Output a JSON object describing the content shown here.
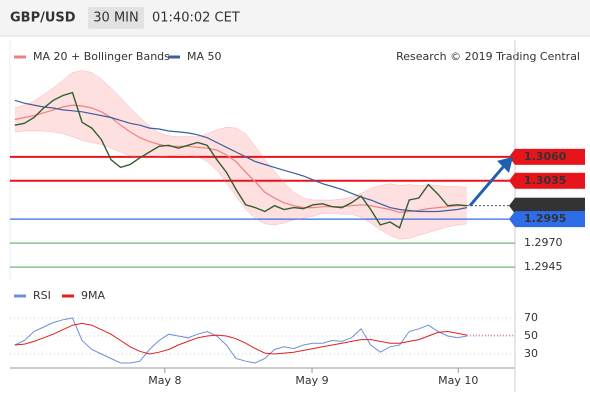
{
  "chart_data": {
    "type": "line",
    "title": "GBP/USD",
    "timeframe": "30 MIN",
    "time": "01:40:02 CET",
    "source": "Research © 2019 Trading Central",
    "price_color": "#2f5f2f",
    "price": [
      1.3093,
      1.3095,
      1.3101,
      1.3111,
      1.3119,
      1.3124,
      1.3127,
      1.3096,
      1.309,
      1.3078,
      1.3057,
      1.3049,
      1.3052,
      1.3059,
      1.3065,
      1.3071,
      1.3072,
      1.3069,
      1.3072,
      1.3075,
      1.3072,
      1.3057,
      1.3044,
      1.3026,
      1.301,
      1.3007,
      1.3003,
      1.3009,
      1.3005,
      1.3007,
      1.3006,
      1.301,
      1.3011,
      1.3008,
      1.3007,
      1.3012,
      1.3019,
      1.3005,
      1.2989,
      1.2992,
      1.2986,
      1.3015,
      1.3017,
      1.3031,
      1.3021,
      1.3009,
      1.301,
      1.3009
    ],
    "series": [
      {
        "name": "MA 20 + Bollinger Bands",
        "color": "#f08080",
        "band_color": "#ffd6d6",
        "values": [
          1.3099,
          1.3101,
          1.3103,
          1.3106,
          1.3109,
          1.3112,
          1.3114,
          1.3113,
          1.3111,
          1.3107,
          1.3101,
          1.3093,
          1.3086,
          1.308,
          1.3076,
          1.3073,
          1.3071,
          1.3071,
          1.3071,
          1.307,
          1.3069,
          1.3067,
          1.3062,
          1.3055,
          1.3044,
          1.3034,
          1.3023,
          1.3017,
          1.3012,
          1.3009,
          1.3007,
          1.3007,
          1.3008,
          1.3008,
          1.3008,
          1.3009,
          1.301,
          1.3009,
          1.3007,
          1.3005,
          1.3002,
          1.3003,
          1.3004,
          1.3006,
          1.3007,
          1.3008,
          1.3009,
          1.3009
        ],
        "upper": [
          1.3111,
          1.3114,
          1.3118,
          1.3125,
          1.3132,
          1.314,
          1.3148,
          1.315,
          1.3148,
          1.3141,
          1.3132,
          1.3122,
          1.3111,
          1.3101,
          1.3092,
          1.3085,
          1.3082,
          1.3081,
          1.3081,
          1.3081,
          1.3084,
          1.3088,
          1.3091,
          1.309,
          1.3084,
          1.3071,
          1.3057,
          1.3045,
          1.3033,
          1.3023,
          1.3017,
          1.3015,
          1.3015,
          1.3015,
          1.3016,
          1.3018,
          1.3022,
          1.3027,
          1.303,
          1.3032,
          1.303,
          1.3031,
          1.303,
          1.3031,
          1.303,
          1.3029,
          1.3029,
          1.3028
        ],
        "lower": [
          1.3086,
          1.3087,
          1.3087,
          1.3087,
          1.3086,
          1.3084,
          1.3081,
          1.3077,
          1.3075,
          1.3073,
          1.3069,
          1.3065,
          1.3061,
          1.3059,
          1.3059,
          1.306,
          1.3061,
          1.3062,
          1.3062,
          1.306,
          1.3055,
          1.3046,
          1.3033,
          1.3019,
          1.3005,
          1.2996,
          1.299,
          1.2989,
          1.2991,
          1.2994,
          1.2996,
          1.2998,
          1.3001,
          1.3001,
          1.3,
          1.3,
          1.2997,
          1.2991,
          1.2984,
          1.2978,
          1.2974,
          1.2975,
          1.2978,
          1.2981,
          1.2984,
          1.2987,
          1.2989,
          1.299
        ]
      },
      {
        "name": "MA 50",
        "color": "#3a5fa0",
        "values": [
          1.3119,
          1.3116,
          1.3114,
          1.3112,
          1.3111,
          1.3109,
          1.3108,
          1.3107,
          1.3105,
          1.3103,
          1.3101,
          1.3098,
          1.3095,
          1.3093,
          1.309,
          1.3089,
          1.3087,
          1.3086,
          1.3085,
          1.3083,
          1.308,
          1.3075,
          1.307,
          1.3065,
          1.306,
          1.3055,
          1.3052,
          1.3049,
          1.3046,
          1.3043,
          1.304,
          1.3036,
          1.3032,
          1.3029,
          1.3026,
          1.3022,
          1.3018,
          1.3015,
          1.3011,
          1.3007,
          1.3005,
          1.3004,
          1.3003,
          1.3003,
          1.3003,
          1.3004,
          1.3005,
          1.3007
        ]
      }
    ],
    "levels": [
      {
        "value": 1.306,
        "label": "1.3060",
        "color": "#e8141c",
        "style": "box"
      },
      {
        "value": 1.3035,
        "label": "1.3035",
        "color": "#e8141c",
        "style": "box"
      },
      {
        "value": 1.3009,
        "label": "1.3009",
        "color": "#333333",
        "style": "current"
      },
      {
        "value": 1.2995,
        "label": "1.2995",
        "color": "#2f6de8",
        "style": "box"
      },
      {
        "value": 1.297,
        "label": "1.2970",
        "color": "#3a9a3a",
        "style": "text"
      },
      {
        "value": 1.2945,
        "label": "1.2945",
        "color": "#3a9a3a",
        "style": "text"
      }
    ],
    "ylim": [
      1.292,
      1.316
    ],
    "xlim": [
      -0.5,
      52
    ],
    "xticks": [
      {
        "value": 15.6,
        "label": "May 8"
      },
      {
        "value": 30.9,
        "label": "May 9"
      },
      {
        "value": 46.1,
        "label": "May 10"
      }
    ],
    "rsi": {
      "series": [
        {
          "name": "RSI",
          "color": "#6d8fd8",
          "values": [
            40,
            45,
            55,
            60,
            65,
            68,
            70,
            45,
            35,
            30,
            25,
            20,
            20,
            22,
            35,
            45,
            52,
            50,
            48,
            52,
            55,
            50,
            40,
            25,
            22,
            20,
            25,
            35,
            38,
            36,
            40,
            42,
            42,
            45,
            44,
            48,
            58,
            40,
            32,
            38,
            40,
            55,
            58,
            62,
            55,
            50,
            48,
            50
          ]
        },
        {
          "name": "9MA",
          "color": "#e02020",
          "values": [
            40,
            41,
            44,
            48,
            52,
            57,
            62,
            64,
            62,
            57,
            52,
            45,
            38,
            33,
            30,
            32,
            35,
            40,
            44,
            48,
            50,
            51,
            50,
            47,
            42,
            36,
            31,
            30,
            31,
            32,
            34,
            36,
            38,
            40,
            42,
            44,
            46,
            46,
            44,
            42,
            42,
            44,
            46,
            50,
            54,
            55,
            53,
            51
          ]
        }
      ],
      "ylim": [
        15,
        85
      ],
      "yticks": [
        70,
        50,
        30
      ]
    }
  }
}
